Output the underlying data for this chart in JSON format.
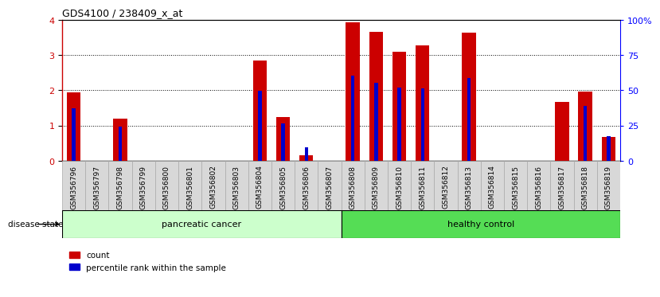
{
  "title": "GDS4100 / 238409_x_at",
  "samples": [
    "GSM356796",
    "GSM356797",
    "GSM356798",
    "GSM356799",
    "GSM356800",
    "GSM356801",
    "GSM356802",
    "GSM356803",
    "GSM356804",
    "GSM356805",
    "GSM356806",
    "GSM356807",
    "GSM356808",
    "GSM356809",
    "GSM356810",
    "GSM356811",
    "GSM356812",
    "GSM356813",
    "GSM356814",
    "GSM356815",
    "GSM356816",
    "GSM356817",
    "GSM356818",
    "GSM356819"
  ],
  "count_values": [
    1.95,
    0.0,
    1.2,
    0.0,
    0.0,
    0.0,
    0.0,
    0.0,
    2.85,
    1.25,
    0.15,
    0.0,
    3.92,
    3.65,
    3.1,
    3.28,
    0.0,
    3.63,
    0.0,
    0.0,
    0.0,
    1.68,
    1.97,
    0.68
  ],
  "percentile_values": [
    1.48,
    0.0,
    0.98,
    0.0,
    0.0,
    0.0,
    0.0,
    0.0,
    1.98,
    1.05,
    0.38,
    0.0,
    2.42,
    2.22,
    2.08,
    2.05,
    0.0,
    2.35,
    0.0,
    0.0,
    0.0,
    0.0,
    1.55,
    0.7
  ],
  "group1_label": "pancreatic cancer",
  "group2_label": "healthy control",
  "group1_count": 12,
  "group2_count": 12,
  "disease_state_label": "disease state",
  "legend_count": "count",
  "legend_percentile": "percentile rank within the sample",
  "ylim_left": [
    0,
    4
  ],
  "ylim_right": [
    0,
    100
  ],
  "yticks_left": [
    0,
    1,
    2,
    3,
    4
  ],
  "yticks_right": [
    0,
    25,
    50,
    75,
    100
  ],
  "ytick_labels_right": [
    "0",
    "25",
    "50",
    "75",
    "100%"
  ],
  "bar_color_count": "#cc0000",
  "bar_color_percentile": "#0000cc",
  "group1_bg": "#ccffcc",
  "group2_bg": "#55dd55",
  "chart_bg": "#ffffff",
  "tick_bg": "#d8d8d8",
  "grid_color": "#000000",
  "bar_width": 0.6,
  "blue_bar_width": 0.15
}
